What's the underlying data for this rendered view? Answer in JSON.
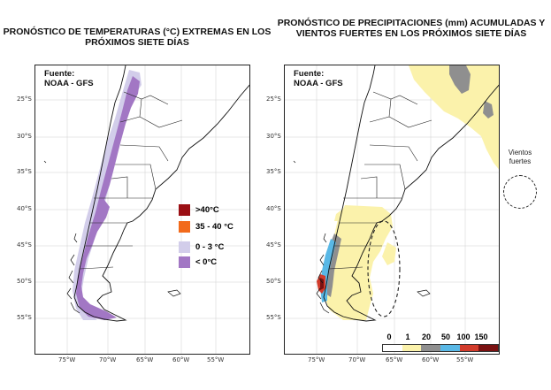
{
  "temperature_map": {
    "title": "PRONÓSTICO DE TEMPERATURAS (°C) EXTREMAS EN LOS PRÓXIMOS SIETE DÍAS",
    "source_label": "Fuente:",
    "source_name": "NOAA - GFS",
    "legend": [
      {
        "label": ">40°C",
        "color": "#9b0f14"
      },
      {
        "label": "35 - 40 °C",
        "color": "#f26a1b"
      },
      {
        "label": "0 - 3 °C",
        "color": "#d2cdea"
      },
      {
        "label": "< 0°C",
        "color": "#a277c4"
      }
    ]
  },
  "precipitation_map": {
    "title": "PRONÓSTICO DE PRECIPITACIONES (mm) ACUMULADAS Y VIENTOS FUERTES EN LOS PRÓXIMOS SIETE DÍAS",
    "source_label": "Fuente:",
    "source_name": "NOAA - GFS",
    "colorbar_labels": [
      "0",
      "1",
      "20",
      "50",
      "100",
      "150"
    ],
    "colorbar_colors": [
      "#ffffff",
      "#fbf2ab",
      "#8f8f8f",
      "#59b8e6",
      "#d23b2b",
      "#7a1111"
    ]
  },
  "wind_legend": {
    "label": "Vientos fuertes"
  },
  "latitude_labels": [
    "25°S",
    "30°S",
    "35°S",
    "40°S",
    "45°S",
    "50°S",
    "55°S"
  ],
  "longitude_labels": [
    "75°W",
    "70°W",
    "65°W",
    "60°W",
    "55°W"
  ],
  "colors": {
    "border": "#222222",
    "grid": "#cfcfcf",
    "coast": "#111111"
  }
}
